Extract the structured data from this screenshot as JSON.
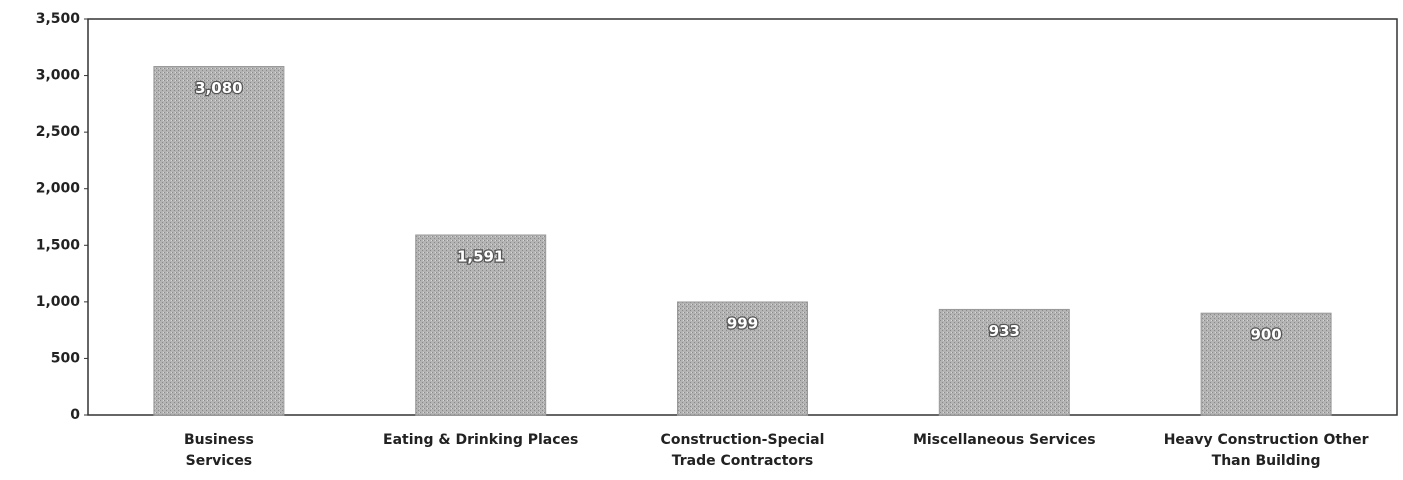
{
  "chart_data": {
    "type": "bar",
    "categories": [
      "Business Services",
      "Eating & Drinking Places",
      "Construction-Special Trade Contractors",
      "Miscellaneous Services",
      "Heavy Construction Other Than Building"
    ],
    "values": [
      3080,
      1591,
      999,
      933,
      900
    ],
    "value_labels": [
      "3,080",
      "1,591",
      "999",
      "933",
      "900"
    ],
    "color": "#a9a9a9",
    "ylim": [
      0,
      3500
    ],
    "yticks": [
      0,
      500,
      {
        "value": 1000,
        "label": "1,000"
      },
      {
        "value": 1500,
        "label": "1,500"
      },
      {
        "value": 2000,
        "label": "2,000"
      },
      {
        "value": 2500,
        "label": "2,500"
      },
      {
        "value": 3000,
        "label": "3,000"
      },
      {
        "value": 3500,
        "label": "3,500"
      }
    ],
    "grid": false
  }
}
